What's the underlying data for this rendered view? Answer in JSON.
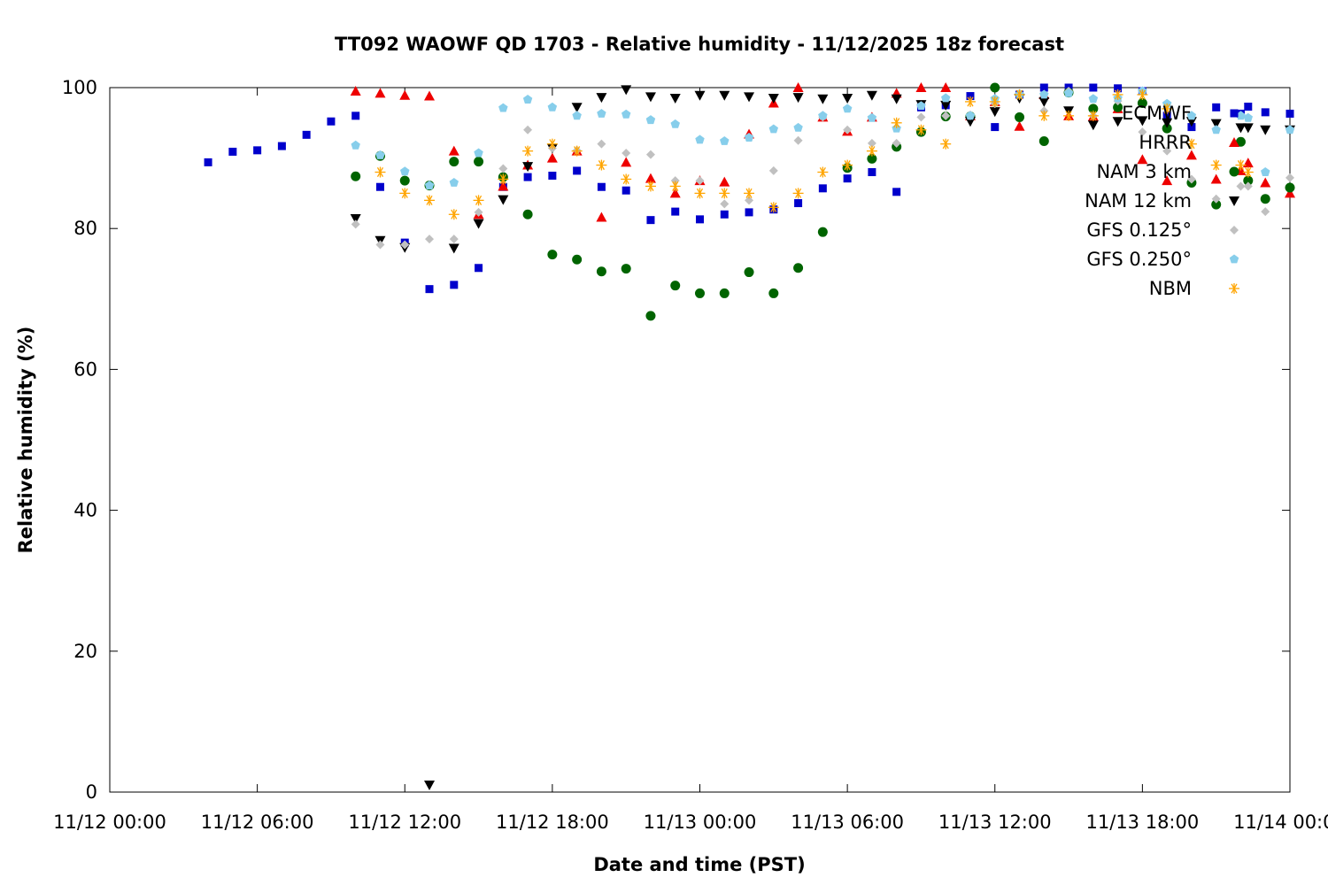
{
  "chart_data": {
    "type": "scatter",
    "title": "TT092 WAOWF QD 1703 - Relative humidity - 11/12/2025 18z forecast",
    "xlabel": "Date and time (PST)",
    "ylabel": "Relative humidity (%)",
    "x_unit": "hours from 11/12 00:00",
    "xlim": [
      0,
      48
    ],
    "ylim": [
      0,
      100
    ],
    "x_ticks": [
      {
        "value": 0,
        "label": "11/12 00:00"
      },
      {
        "value": 6,
        "label": "11/12 06:00"
      },
      {
        "value": 12,
        "label": "11/12 12:00"
      },
      {
        "value": 18,
        "label": "11/12 18:00"
      },
      {
        "value": 24,
        "label": "11/13 00:00"
      },
      {
        "value": 30,
        "label": "11/13 06:00"
      },
      {
        "value": 36,
        "label": "11/13 12:00"
      },
      {
        "value": 42,
        "label": "11/13 18:00"
      },
      {
        "value": 48,
        "label": "11/14 00:00"
      }
    ],
    "y_ticks": [
      {
        "value": 0,
        "label": "0"
      },
      {
        "value": 20,
        "label": "20"
      },
      {
        "value": 40,
        "label": "40"
      },
      {
        "value": 60,
        "label": "60"
      },
      {
        "value": 80,
        "label": "80"
      },
      {
        "value": 100,
        "label": "100"
      }
    ],
    "grid": false,
    "legend_position": "top-right",
    "series": [
      {
        "name": "ECMWF",
        "marker": "square",
        "color": "#0000cc",
        "points": [
          [
            4,
            89.4
          ],
          [
            5,
            90.9
          ],
          [
            6,
            91.1
          ],
          [
            7,
            91.7
          ],
          [
            8,
            93.3
          ],
          [
            9,
            95.2
          ],
          [
            10,
            96.0
          ],
          [
            11,
            85.9
          ],
          [
            12,
            78.0
          ],
          [
            13,
            71.4
          ],
          [
            14,
            72.0
          ],
          [
            15,
            74.4
          ],
          [
            16,
            85.9
          ],
          [
            17,
            87.3
          ],
          [
            18,
            87.5
          ],
          [
            19,
            88.2
          ],
          [
            20,
            85.9
          ],
          [
            21,
            85.4
          ],
          [
            22,
            81.2
          ],
          [
            23,
            82.4
          ],
          [
            24,
            81.3
          ],
          [
            25,
            82.0
          ],
          [
            26,
            82.3
          ],
          [
            27,
            82.7
          ],
          [
            28,
            83.6
          ],
          [
            29,
            85.7
          ],
          [
            30,
            87.1
          ],
          [
            31,
            88.0
          ],
          [
            32,
            85.2
          ],
          [
            33,
            97.2
          ],
          [
            34,
            97.5
          ],
          [
            35,
            98.8
          ],
          [
            36,
            94.4
          ],
          [
            37,
            99.0
          ],
          [
            38,
            100.0
          ],
          [
            39,
            100.0
          ],
          [
            40,
            100.0
          ],
          [
            41,
            99.9
          ],
          [
            42,
            99.5
          ],
          [
            43,
            96.0
          ],
          [
            44,
            94.4
          ],
          [
            45,
            97.2
          ],
          [
            46,
            96.3
          ],
          [
            46.3,
            97.3
          ],
          [
            47,
            96.5
          ],
          [
            48,
            96.3
          ]
        ]
      },
      {
        "name": "HRRR",
        "marker": "triangle-up",
        "color": "#ee0000",
        "points": [
          [
            10,
            99.5
          ],
          [
            11,
            99.2
          ],
          [
            12,
            98.9
          ],
          [
            13,
            98.8
          ],
          [
            14,
            91.0
          ],
          [
            15,
            82.0
          ],
          [
            16,
            86.0
          ],
          [
            17,
            89.0
          ],
          [
            18,
            90.0
          ],
          [
            19,
            91.0
          ],
          [
            20,
            81.6
          ],
          [
            21,
            89.4
          ],
          [
            22,
            87.1
          ],
          [
            23,
            85.0
          ],
          [
            24,
            86.8
          ],
          [
            25,
            86.6
          ],
          [
            26,
            93.4
          ],
          [
            27,
            97.8
          ],
          [
            28,
            100.0
          ],
          [
            29,
            95.8
          ],
          [
            30,
            93.8
          ],
          [
            31,
            95.8
          ],
          [
            32,
            99.2
          ],
          [
            33,
            100.0
          ],
          [
            34,
            100.0
          ],
          [
            35,
            96.0
          ],
          [
            36,
            98.0
          ],
          [
            37,
            94.5
          ],
          [
            38,
            99.0
          ],
          [
            39,
            96.0
          ],
          [
            40,
            95.9
          ],
          [
            41,
            97.0
          ],
          [
            42,
            89.8
          ],
          [
            43,
            86.8
          ],
          [
            44,
            90.4
          ],
          [
            45,
            87.0
          ],
          [
            46,
            88.2
          ],
          [
            46.3,
            89.3
          ],
          [
            47,
            86.5
          ],
          [
            48,
            85.0
          ]
        ]
      },
      {
        "name": "NAM 3 km",
        "marker": "circle",
        "color": "#006400",
        "points": [
          [
            10,
            87.4
          ],
          [
            11,
            90.3
          ],
          [
            12,
            86.8
          ],
          [
            13,
            86.1
          ],
          [
            14,
            89.5
          ],
          [
            15,
            89.5
          ],
          [
            16,
            87.3
          ],
          [
            17,
            82.0
          ],
          [
            18,
            76.3
          ],
          [
            19,
            75.6
          ],
          [
            20,
            73.9
          ],
          [
            21,
            74.3
          ],
          [
            22,
            67.6
          ],
          [
            23,
            71.9
          ],
          [
            24,
            70.8
          ],
          [
            25,
            70.8
          ],
          [
            26,
            73.8
          ],
          [
            27,
            70.8
          ],
          [
            28,
            74.4
          ],
          [
            29,
            79.5
          ],
          [
            30,
            88.6
          ],
          [
            31,
            89.9
          ],
          [
            32,
            91.6
          ],
          [
            33,
            93.7
          ],
          [
            34,
            95.9
          ],
          [
            35,
            95.9
          ],
          [
            36,
            100.0
          ],
          [
            37,
            95.8
          ],
          [
            38,
            92.4
          ],
          [
            39,
            99.3
          ],
          [
            40,
            97.0
          ],
          [
            41,
            97.2
          ],
          [
            42,
            97.8
          ],
          [
            43,
            94.2
          ],
          [
            44,
            86.5
          ],
          [
            45,
            83.4
          ],
          [
            46,
            92.3
          ],
          [
            46.3,
            86.8
          ],
          [
            47,
            84.2
          ],
          [
            48,
            85.8
          ]
        ]
      },
      {
        "name": "NAM 12 km",
        "marker": "triangle-down",
        "color": "#000000",
        "points": [
          [
            10,
            81.4
          ],
          [
            11,
            78.3
          ],
          [
            12,
            77.3
          ],
          [
            13,
            1.0
          ],
          [
            14,
            77.2
          ],
          [
            15,
            80.7
          ],
          [
            16,
            84.1
          ],
          [
            17,
            88.8
          ],
          [
            18,
            91.4
          ],
          [
            19,
            97.2
          ],
          [
            20,
            98.6
          ],
          [
            21,
            99.7
          ],
          [
            22,
            98.7
          ],
          [
            23,
            98.5
          ],
          [
            24,
            98.9
          ],
          [
            25,
            98.9
          ],
          [
            26,
            98.7
          ],
          [
            27,
            98.5
          ],
          [
            28,
            98.6
          ],
          [
            29,
            98.4
          ],
          [
            30,
            98.5
          ],
          [
            31,
            98.9
          ],
          [
            32,
            98.4
          ],
          [
            33,
            97.6
          ],
          [
            34,
            97.5
          ],
          [
            35,
            95.2
          ],
          [
            36,
            96.6
          ],
          [
            37,
            98.5
          ],
          [
            38,
            98.0
          ],
          [
            39,
            96.7
          ],
          [
            40,
            94.7
          ],
          [
            41,
            95.2
          ],
          [
            42,
            95.3
          ],
          [
            43,
            95.0
          ],
          [
            44,
            95.2
          ],
          [
            45,
            94.9
          ],
          [
            46,
            94.3
          ],
          [
            46.3,
            94.3
          ],
          [
            47,
            94.0
          ],
          [
            48,
            94.0
          ]
        ]
      },
      {
        "name": "GFS 0.125°",
        "marker": "diamond",
        "color": "#c0c0c0",
        "points": [
          [
            10,
            80.6
          ],
          [
            11,
            77.7
          ],
          [
            12,
            77.7
          ],
          [
            13,
            78.5
          ],
          [
            14,
            78.5
          ],
          [
            15,
            82.3
          ],
          [
            16,
            88.5
          ],
          [
            17,
            94.0
          ],
          [
            18,
            91.4
          ],
          [
            19,
            91.1
          ],
          [
            20,
            92.0
          ],
          [
            21,
            90.7
          ],
          [
            22,
            90.5
          ],
          [
            23,
            86.8
          ],
          [
            24,
            86.8
          ],
          [
            25,
            83.5
          ],
          [
            26,
            84.0
          ],
          [
            27,
            88.2
          ],
          [
            28,
            92.5
          ],
          [
            29,
            95.8
          ],
          [
            30,
            94.0
          ],
          [
            31,
            92.1
          ],
          [
            32,
            92.1
          ],
          [
            33,
            95.8
          ],
          [
            34,
            96.0
          ],
          [
            35,
            96.0
          ],
          [
            36,
            97.7
          ],
          [
            37,
            99.2
          ],
          [
            38,
            96.7
          ],
          [
            39,
            99.5
          ],
          [
            40,
            96.0
          ],
          [
            41,
            98.1
          ],
          [
            42,
            93.7
          ],
          [
            43,
            91.0
          ],
          [
            44,
            87.0
          ],
          [
            45,
            84.2
          ],
          [
            46,
            86.0
          ],
          [
            46.3,
            86.0
          ],
          [
            47,
            82.4
          ],
          [
            48,
            87.2
          ]
        ]
      },
      {
        "name": "GFS 0.250°",
        "marker": "pentagon",
        "color": "#87ceeb",
        "points": [
          [
            10,
            91.8
          ],
          [
            11,
            90.4
          ],
          [
            12,
            88.1
          ],
          [
            13,
            86.1
          ],
          [
            14,
            86.5
          ],
          [
            15,
            90.7
          ],
          [
            16,
            97.1
          ],
          [
            17,
            98.3
          ],
          [
            18,
            97.2
          ],
          [
            19,
            96.0
          ],
          [
            20,
            96.3
          ],
          [
            21,
            96.2
          ],
          [
            22,
            95.4
          ],
          [
            23,
            94.8
          ],
          [
            24,
            92.6
          ],
          [
            25,
            92.4
          ],
          [
            26,
            92.9
          ],
          [
            27,
            94.1
          ],
          [
            28,
            94.3
          ],
          [
            29,
            96.0
          ],
          [
            30,
            97.0
          ],
          [
            31,
            95.7
          ],
          [
            32,
            94.2
          ],
          [
            33,
            97.4
          ],
          [
            34,
            98.5
          ],
          [
            35,
            96.0
          ],
          [
            36,
            98.4
          ],
          [
            37,
            99.0
          ],
          [
            38,
            99.0
          ],
          [
            39,
            99.2
          ],
          [
            40,
            98.4
          ],
          [
            41,
            98.5
          ],
          [
            42,
            99.5
          ],
          [
            43,
            97.7
          ],
          [
            44,
            96.0
          ],
          [
            45,
            94.0
          ],
          [
            46,
            96.0
          ],
          [
            46.3,
            95.7
          ],
          [
            47,
            88.0
          ],
          [
            48,
            94.0
          ]
        ]
      },
      {
        "name": "NBM",
        "marker": "asterisk",
        "color": "#ffa500",
        "points": [
          [
            11,
            88.0
          ],
          [
            12,
            85.0
          ],
          [
            13,
            84.0
          ],
          [
            14,
            82.0
          ],
          [
            15,
            84.0
          ],
          [
            16,
            87.0
          ],
          [
            17,
            91.0
          ],
          [
            18,
            92.0
          ],
          [
            19,
            91.0
          ],
          [
            20,
            89.0
          ],
          [
            21,
            87.0
          ],
          [
            22,
            86.0
          ],
          [
            23,
            86.0
          ],
          [
            24,
            85.0
          ],
          [
            25,
            85.0
          ],
          [
            26,
            85.0
          ],
          [
            27,
            83.0
          ],
          [
            28,
            85.0
          ],
          [
            29,
            88.0
          ],
          [
            30,
            89.0
          ],
          [
            31,
            91.0
          ],
          [
            32,
            95.0
          ],
          [
            33,
            94.0
          ],
          [
            34,
            92.0
          ],
          [
            35,
            98.0
          ],
          [
            36,
            98.0
          ],
          [
            37,
            99.0
          ],
          [
            38,
            96.0
          ],
          [
            39,
            96.0
          ],
          [
            40,
            96.0
          ],
          [
            41,
            99.0
          ],
          [
            42,
            99.0
          ],
          [
            43,
            97.0
          ],
          [
            44,
            92.0
          ],
          [
            45,
            89.0
          ],
          [
            46,
            89.0
          ],
          [
            46.3,
            88.0
          ]
        ]
      }
    ]
  }
}
